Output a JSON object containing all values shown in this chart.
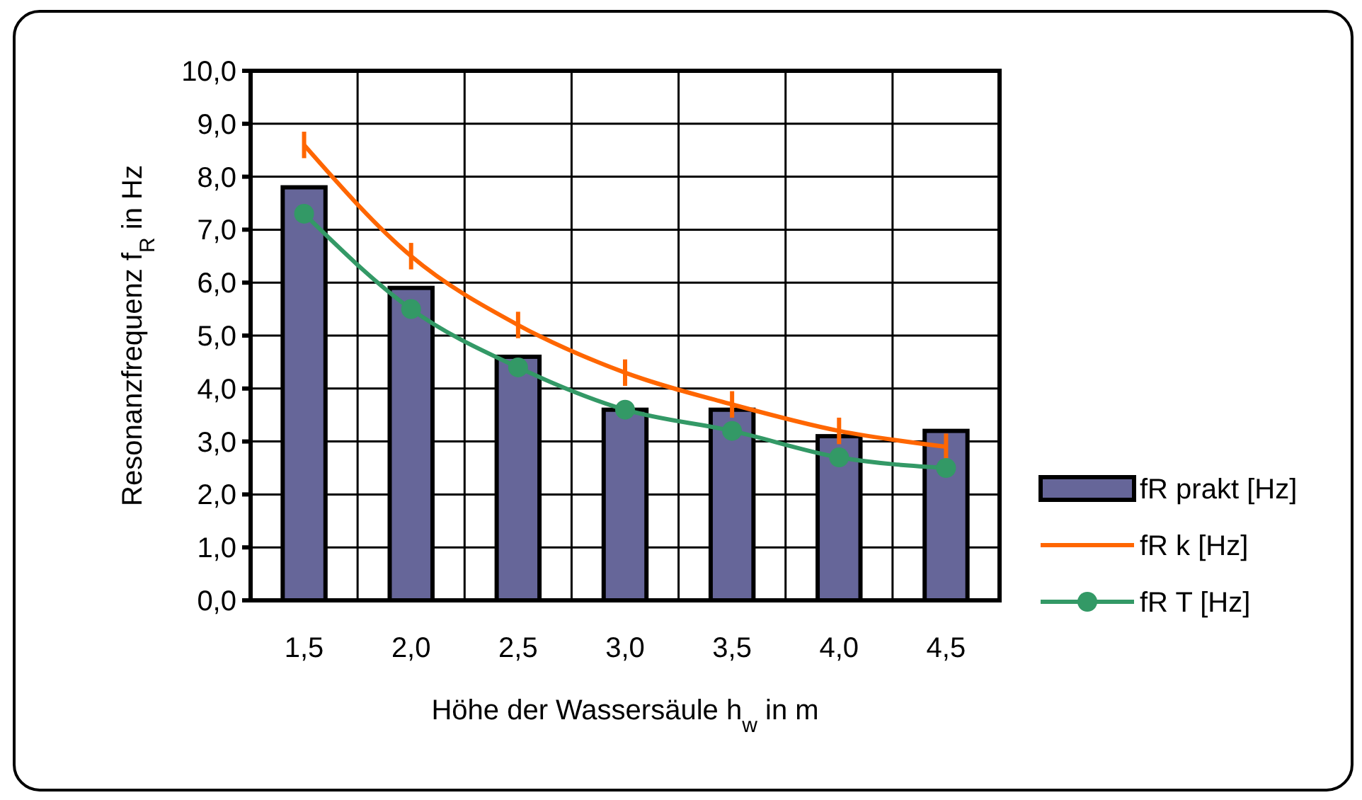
{
  "chart_data": {
    "type": "bar",
    "xlabel": "Höhe der Wassersäule h$_{w}$ in m",
    "ylabel": "Resonanzfrequenz f$_{R}$ in Hz",
    "categories": [
      "1,5",
      "2,0",
      "2,5",
      "3,0",
      "3,5",
      "4,0",
      "4,5"
    ],
    "series": [
      {
        "name": "fR prakt [Hz]",
        "color": "#666699",
        "values": [
          7.8,
          5.9,
          4.6,
          3.6,
          3.6,
          3.1,
          3.2
        ]
      },
      {
        "name": "fR k [Hz]",
        "type": "line",
        "color": "#ff6600",
        "marker": "none",
        "values": [
          8.6,
          6.5,
          5.2,
          4.3,
          3.7,
          3.2,
          2.9
        ],
        "errors": [
          0.25,
          0.25,
          0.25,
          0.25,
          0.25,
          0.25,
          0.25
        ]
      },
      {
        "name": "fR T [Hz]",
        "type": "line",
        "color": "#339966",
        "marker": "circle",
        "values": [
          7.3,
          5.5,
          4.4,
          3.6,
          3.2,
          2.7,
          2.5
        ]
      }
    ],
    "ylim": [
      0,
      10
    ],
    "yticks": [
      {
        "value": 0,
        "label": "0,0"
      },
      {
        "value": 1,
        "label": "1,0"
      },
      {
        "value": 2,
        "label": "2,0"
      },
      {
        "value": 3,
        "label": "3,0"
      },
      {
        "value": 4,
        "label": "4,0"
      },
      {
        "value": 5,
        "label": "5,0"
      },
      {
        "value": 6,
        "label": "6,0"
      },
      {
        "value": 7,
        "label": "7,0"
      },
      {
        "value": 8,
        "label": "8,0"
      },
      {
        "value": 9,
        "label": "9,0"
      },
      {
        "value": 10,
        "label": "10,0"
      }
    ],
    "grid": true,
    "legend": "right"
  }
}
